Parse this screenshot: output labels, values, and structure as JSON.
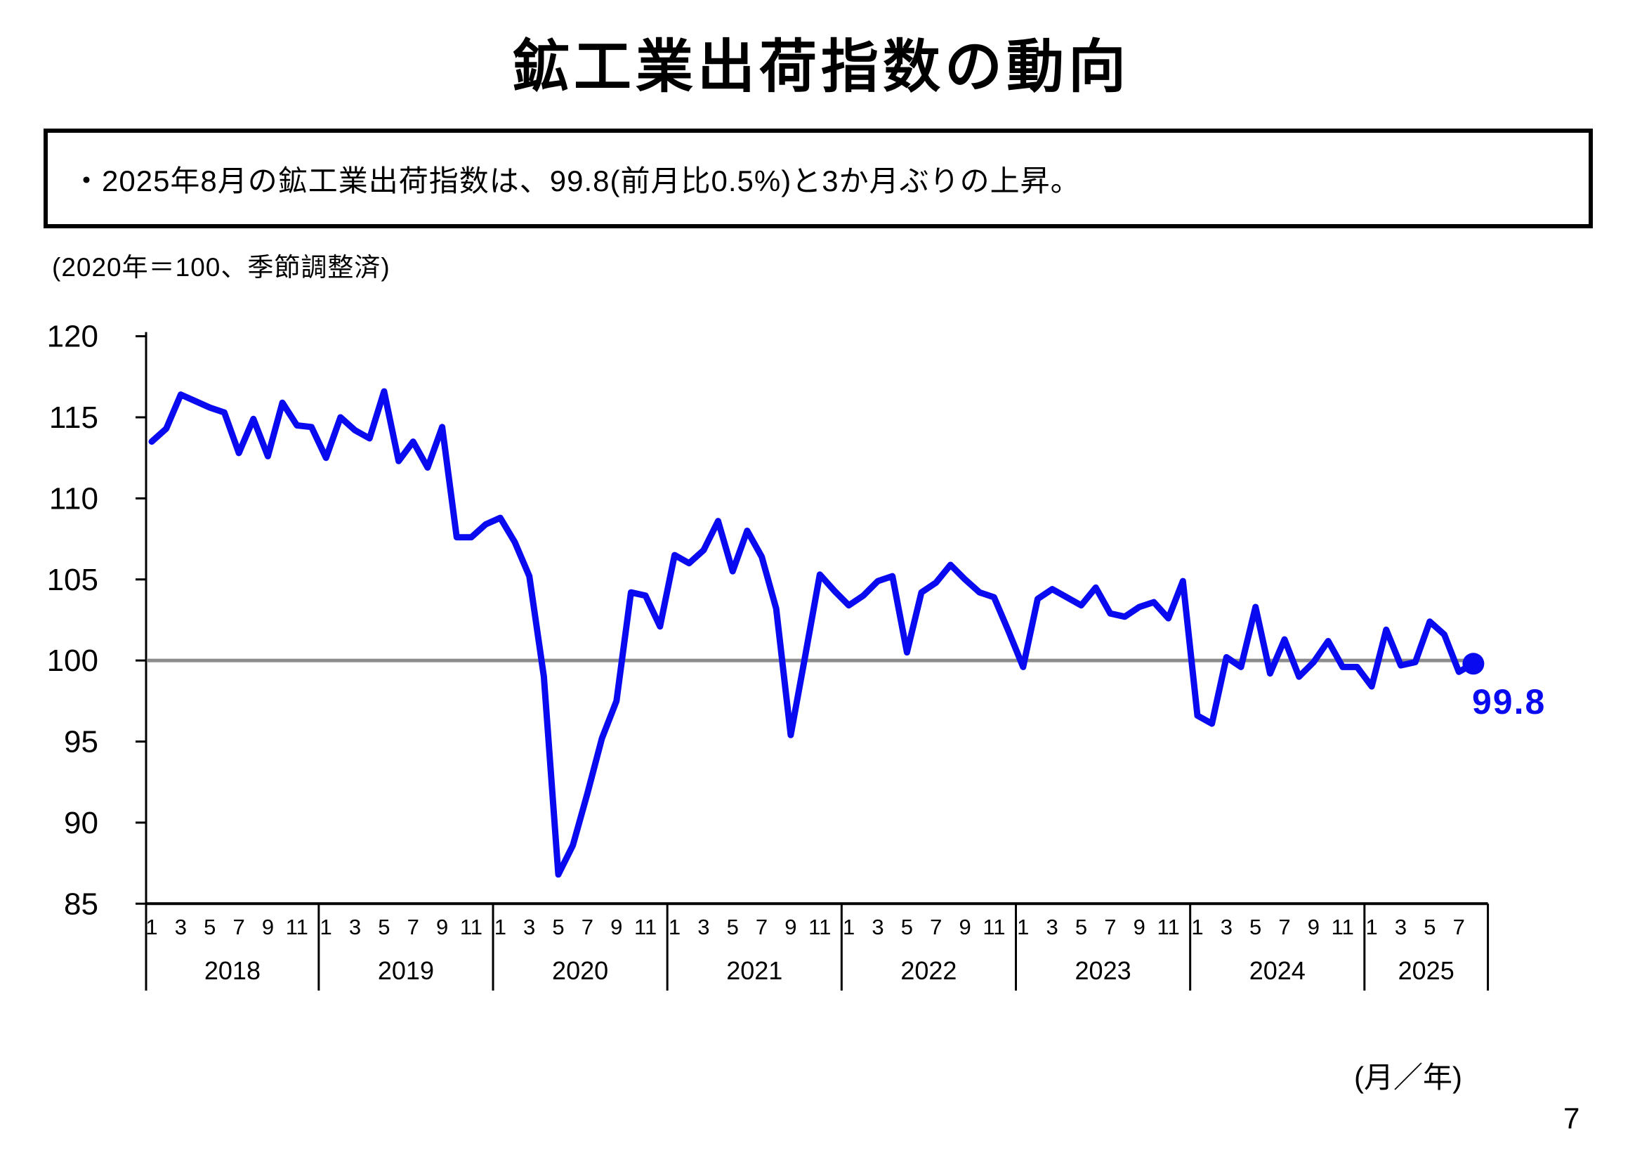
{
  "page": {
    "title": "鉱工業出荷指数の動向",
    "page_number": "7"
  },
  "summary": {
    "bullet": "・2025年8月の鉱工業出荷指数は、99.8(前月比0.5%)と3か月ぶりの上昇。"
  },
  "chart_data": {
    "type": "line",
    "title": "鉱工業出荷指数の動向",
    "unit_note": "(2020年＝100、季節調整済)",
    "x_axis_label": "(月／年)",
    "ylabel": "",
    "ylim": [
      85,
      120
    ],
    "y_ticks": [
      85,
      90,
      95,
      100,
      105,
      110,
      115,
      120
    ],
    "reference_line": 100,
    "grid": false,
    "legend_position": "none",
    "line_color": "#0a0af0",
    "reference_line_color": "#8c8c8c",
    "axis_color": "#000000",
    "month_tick_labels": [
      1,
      3,
      5,
      7,
      9,
      11
    ],
    "series": [
      {
        "name": "鉱工業出荷指数（季節調整済）",
        "years": [
          {
            "year": 2018,
            "values": [
              113.5,
              114.3,
              116.4,
              116.0,
              115.6,
              115.3,
              112.8,
              114.9,
              112.6,
              115.9,
              114.5,
              114.4
            ]
          },
          {
            "year": 2019,
            "values": [
              112.5,
              115.0,
              114.2,
              113.7,
              116.6,
              112.3,
              113.5,
              111.9,
              114.4,
              107.6,
              107.6,
              108.4
            ]
          },
          {
            "year": 2020,
            "values": [
              108.8,
              107.3,
              105.2,
              99.0,
              86.8,
              88.6,
              91.8,
              95.2,
              97.5,
              104.2,
              104.0,
              102.1
            ]
          },
          {
            "year": 2021,
            "values": [
              106.5,
              106.0,
              106.8,
              108.6,
              105.5,
              108.0,
              106.4,
              103.2,
              95.4,
              100.3,
              105.3,
              104.3
            ]
          },
          {
            "year": 2022,
            "values": [
              103.4,
              104.0,
              104.9,
              105.2,
              100.5,
              104.2,
              104.8,
              105.9,
              105.0,
              104.2,
              103.9,
              101.8
            ]
          },
          {
            "year": 2023,
            "values": [
              99.6,
              103.8,
              104.4,
              103.9,
              103.4,
              104.5,
              102.9,
              102.7,
              103.3,
              103.6,
              102.6,
              104.9
            ]
          },
          {
            "year": 2024,
            "values": [
              96.6,
              96.1,
              100.2,
              99.6,
              103.3,
              99.2,
              101.3,
              99.0,
              99.9,
              101.2,
              99.6,
              99.6
            ]
          },
          {
            "year": 2025,
            "values": [
              98.4,
              101.9,
              99.7,
              99.9,
              102.4,
              101.6,
              99.3,
              99.8
            ]
          }
        ]
      }
    ],
    "annotation": {
      "label": "99.8",
      "year": 2025,
      "month": 8,
      "value": 99.8
    }
  }
}
